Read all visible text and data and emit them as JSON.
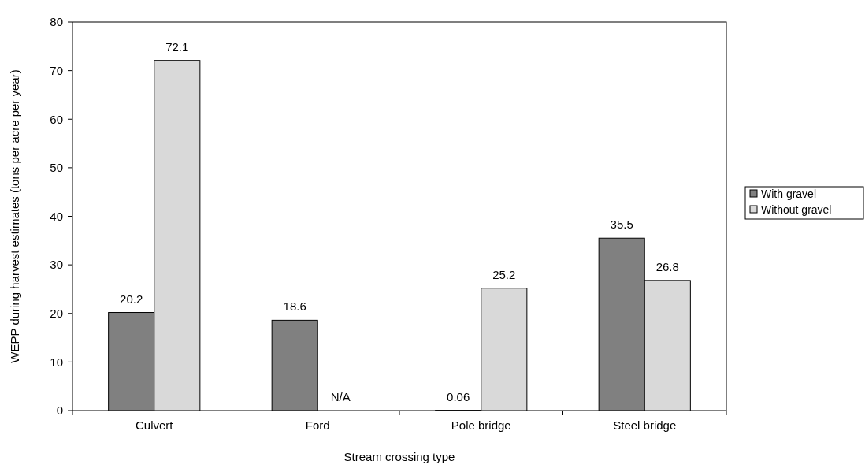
{
  "chart_data": {
    "type": "bar",
    "xlabel": "Stream crossing type",
    "ylabel": "WEPP during harvest estimates (tons per acre per year)",
    "categories": [
      "Culvert",
      "Ford",
      "Pole bridge",
      "Steel bridge"
    ],
    "series": [
      {
        "name": "With gravel",
        "color": "#808080",
        "values": [
          20.2,
          18.6,
          0.06,
          35.5
        ],
        "value_labels": [
          "20.2",
          "18.6",
          "0.06",
          "35.5"
        ]
      },
      {
        "name": "Without gravel",
        "color": "#d9d9d9",
        "values": [
          72.1,
          null,
          25.2,
          26.8
        ],
        "value_labels": [
          "72.1",
          "N/A",
          "25.2",
          "26.8"
        ]
      }
    ],
    "ylim": [
      0,
      80
    ],
    "yticks": [
      0,
      10,
      20,
      30,
      40,
      50,
      60,
      70,
      80
    ],
    "grid": false,
    "legend": "right"
  }
}
